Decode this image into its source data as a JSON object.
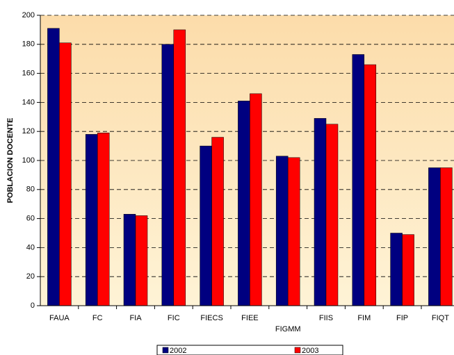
{
  "chart_data": {
    "type": "bar",
    "ylabel": "POBLACION DOCENTE",
    "categories": [
      "FAUA",
      "FC",
      "FIA",
      "FIC",
      "FIECS",
      "FIEE",
      "FIGMM",
      "FIIS",
      "FIM",
      "FIP",
      "FIQT"
    ],
    "series": [
      {
        "name": "2002",
        "color": "#000080",
        "values": [
          191,
          118,
          63,
          180,
          110,
          141,
          103,
          129,
          173,
          50,
          95
        ]
      },
      {
        "name": "2003",
        "color": "#ff0000",
        "values": [
          181,
          119,
          62,
          190,
          116,
          146,
          102,
          125,
          166,
          49,
          95
        ]
      }
    ],
    "ylim": [
      0,
      200
    ],
    "yticks": [
      0,
      20,
      40,
      60,
      80,
      100,
      120,
      140,
      160,
      180,
      200
    ],
    "grid": true
  }
}
